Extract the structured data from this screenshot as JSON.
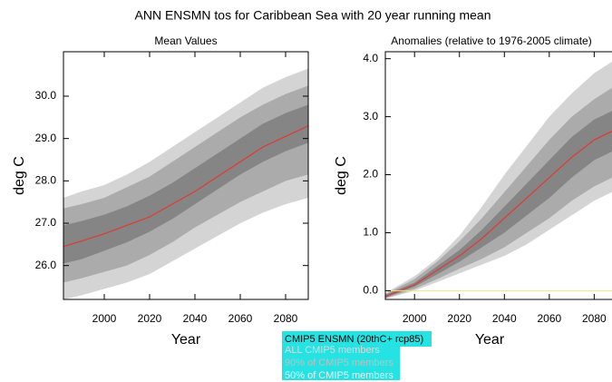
{
  "title": "ANN ENSMN tos for Caribbean Sea with 20 year running mean",
  "chart_data": [
    {
      "type": "band-line",
      "title": "Mean Values",
      "xlabel": "Year",
      "ylabel": "deg C",
      "x": [
        1982,
        1990,
        2000,
        2010,
        2020,
        2030,
        2040,
        2050,
        2060,
        2070,
        2080,
        2090
      ],
      "xlim": [
        1982,
        2090
      ],
      "xticks": [
        2000,
        2020,
        2040,
        2060,
        2080
      ],
      "ylim": [
        25.2,
        31.05
      ],
      "yticks": [
        {
          "value": 26,
          "label": "26.0"
        },
        {
          "value": 27,
          "label": "27.0"
        },
        {
          "value": 28,
          "label": "28.0"
        },
        {
          "value": 29,
          "label": "29.0"
        },
        {
          "value": 30,
          "label": "30.0"
        }
      ],
      "series": [
        {
          "name": "ALL CMIP5 members",
          "color": "#d4d4d4",
          "lower": [
            25.2,
            25.3,
            25.45,
            25.6,
            25.8,
            26.1,
            26.4,
            26.7,
            27.0,
            27.25,
            27.45,
            27.6
          ],
          "upper": [
            27.6,
            27.75,
            27.9,
            28.15,
            28.45,
            28.8,
            29.15,
            29.5,
            29.85,
            30.2,
            30.45,
            30.65
          ]
        },
        {
          "name": "90% of CMIP5 members",
          "color": "#ababab",
          "lower": [
            25.6,
            25.7,
            25.85,
            26.0,
            26.25,
            26.55,
            26.9,
            27.2,
            27.5,
            27.75,
            28.0,
            28.15
          ],
          "upper": [
            27.35,
            27.45,
            27.6,
            27.85,
            28.1,
            28.45,
            28.8,
            29.15,
            29.5,
            29.8,
            30.05,
            30.25
          ]
        },
        {
          "name": "50% of CMIP5 members",
          "color": "#858585",
          "lower": [
            26.05,
            26.15,
            26.35,
            26.55,
            26.8,
            27.1,
            27.45,
            27.8,
            28.15,
            28.45,
            28.7,
            28.9
          ],
          "upper": [
            26.95,
            27.05,
            27.2,
            27.4,
            27.65,
            27.95,
            28.3,
            28.65,
            29.0,
            29.35,
            29.6,
            29.8
          ]
        },
        {
          "name": "CMIP5 ENSMN (20thC+ rcp85)",
          "color": "#e03a2e",
          "values": [
            26.45,
            26.58,
            26.75,
            26.95,
            27.15,
            27.45,
            27.75,
            28.1,
            28.45,
            28.8,
            29.05,
            29.3
          ]
        }
      ]
    },
    {
      "type": "band-line",
      "title": "Anomalies (relative to 1976-2005 climate)",
      "xlabel": "Year",
      "ylabel": "deg C",
      "x": [
        1987,
        2000,
        2010,
        2020,
        2030,
        2040,
        2050,
        2060,
        2070,
        2080,
        2088
      ],
      "xlim": [
        1987,
        2096
      ],
      "xticks": [
        2000,
        2020,
        2040,
        2060,
        2080
      ],
      "ylim": [
        -0.15,
        4.12
      ],
      "yticks": [
        {
          "value": 0,
          "label": "0.0"
        },
        {
          "value": 1,
          "label": "1.0"
        },
        {
          "value": 2,
          "label": "2.0"
        },
        {
          "value": 3,
          "label": "3.0"
        },
        {
          "value": 4,
          "label": "4.0"
        }
      ],
      "hline": 0,
      "hline_color": "#f2e27a",
      "series": [
        {
          "color": "#d4d4d4",
          "lower": [
            -0.14,
            0.0,
            0.15,
            0.3,
            0.45,
            0.6,
            0.8,
            1.05,
            1.3,
            1.55,
            1.7
          ],
          "upper": [
            -0.04,
            0.25,
            0.55,
            0.95,
            1.45,
            2.0,
            2.5,
            3.0,
            3.4,
            3.75,
            3.95
          ]
        },
        {
          "color": "#ababab",
          "lower": [
            -0.13,
            0.03,
            0.2,
            0.38,
            0.55,
            0.75,
            1.0,
            1.25,
            1.55,
            1.8,
            1.95
          ],
          "upper": [
            -0.06,
            0.2,
            0.5,
            0.85,
            1.25,
            1.7,
            2.15,
            2.6,
            3.0,
            3.3,
            3.5
          ]
        },
        {
          "color": "#858585",
          "lower": [
            -0.12,
            0.07,
            0.28,
            0.5,
            0.75,
            1.0,
            1.3,
            1.6,
            1.95,
            2.25,
            2.4
          ],
          "upper": [
            -0.07,
            0.14,
            0.42,
            0.7,
            1.05,
            1.45,
            1.85,
            2.25,
            2.65,
            2.95,
            3.1
          ]
        },
        {
          "color": "#e03a2e",
          "values": [
            -0.1,
            0.1,
            0.35,
            0.6,
            0.9,
            1.25,
            1.6,
            1.95,
            2.3,
            2.6,
            2.75
          ]
        }
      ]
    }
  ]
}
